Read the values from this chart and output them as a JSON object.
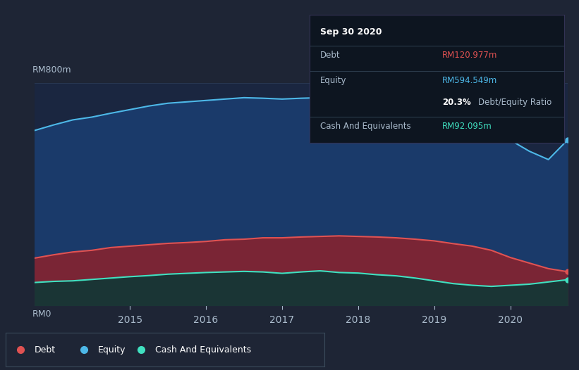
{
  "bg_color": "#1e2535",
  "chart_bg": "#1a2640",
  "debt_color": "#e05252",
  "equity_color": "#4db8e8",
  "cash_color": "#40e0c0",
  "debt_fill": "#7a2535",
  "equity_fill": "#1a3a6a",
  "cash_fill": "#1a3535",
  "grid_color": "#2a3a55",
  "text_color": "#aabbcc",
  "ylabel_top": "RM800m",
  "ylabel_bottom": "RM0",
  "x_ticks": [
    2015,
    2016,
    2017,
    2018,
    2019,
    2020
  ],
  "tooltip": {
    "title": "Sep 30 2020",
    "debt_label": "Debt",
    "debt_value": "RM120.977m",
    "equity_label": "Equity",
    "equity_value": "RM594.549m",
    "ratio_value": "20.3%",
    "ratio_label": "Debt/Equity Ratio",
    "cash_label": "Cash And Equivalents",
    "cash_value": "RM92.095m"
  },
  "years": [
    2013.75,
    2014.0,
    2014.25,
    2014.5,
    2014.75,
    2015.0,
    2015.25,
    2015.5,
    2015.75,
    2016.0,
    2016.25,
    2016.5,
    2016.75,
    2017.0,
    2017.25,
    2017.5,
    2017.75,
    2018.0,
    2018.25,
    2018.5,
    2018.75,
    2019.0,
    2019.25,
    2019.5,
    2019.75,
    2020.0,
    2020.25,
    2020.5,
    2020.75
  ],
  "equity": [
    630,
    650,
    668,
    678,
    692,
    705,
    718,
    728,
    733,
    738,
    743,
    748,
    746,
    743,
    746,
    748,
    746,
    748,
    743,
    746,
    738,
    718,
    698,
    668,
    635,
    595,
    555,
    525,
    595
  ],
  "debt": [
    170,
    182,
    192,
    198,
    208,
    213,
    218,
    223,
    226,
    230,
    236,
    238,
    243,
    243,
    246,
    248,
    250,
    248,
    246,
    243,
    238,
    232,
    222,
    213,
    198,
    172,
    152,
    132,
    121
  ],
  "cash": [
    82,
    86,
    88,
    93,
    98,
    103,
    107,
    112,
    115,
    118,
    120,
    122,
    120,
    115,
    120,
    124,
    118,
    116,
    110,
    106,
    98,
    88,
    78,
    72,
    68,
    72,
    76,
    84,
    92
  ]
}
